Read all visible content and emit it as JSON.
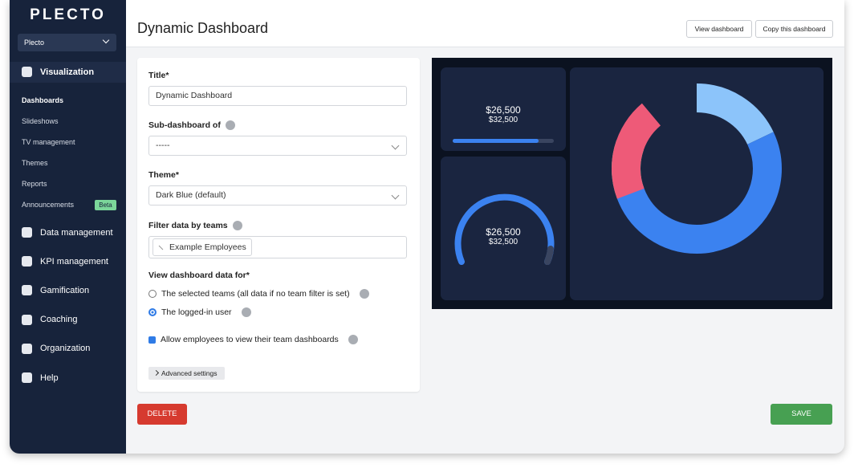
{
  "sidebar": {
    "logo": "PLECTO",
    "account": "Plecto",
    "active_section": "Visualization",
    "subitems": [
      "Dashboards",
      "Slideshows",
      "TV management",
      "Themes",
      "Reports",
      "Announcements"
    ],
    "badge": "Beta",
    "sections": [
      "Data management",
      "KPI management",
      "Gamification",
      "Coaching",
      "Organization",
      "Help"
    ]
  },
  "header": {
    "title": "Dynamic Dashboard",
    "buttons": [
      "View dashboard",
      "Copy this dashboard"
    ]
  },
  "form": {
    "fields": [
      {
        "label": "Title*",
        "value": "Dynamic Dashboard"
      },
      {
        "label": "Sub-dashboard of",
        "value": "-----"
      },
      {
        "label": "Theme*",
        "value": "Dark Blue (default)"
      },
      {
        "label": "Filter data by teams",
        "value": "Example Employees"
      }
    ],
    "view_for": {
      "label": "View dashboard data for*",
      "options": [
        "The selected teams (all data if no team filter is set)",
        "The logged-in user"
      ]
    },
    "checkbox": "Allow employees to view their team dashboards",
    "advanced": "Advanced settings"
  },
  "actions": {
    "delete": "DELETE",
    "save": "SAVE"
  },
  "preview": {
    "widgets": [
      {
        "value": "$26,500",
        "target": "$32,500"
      },
      {
        "value": "$26,500",
        "target": "$32,500"
      }
    ]
  }
}
